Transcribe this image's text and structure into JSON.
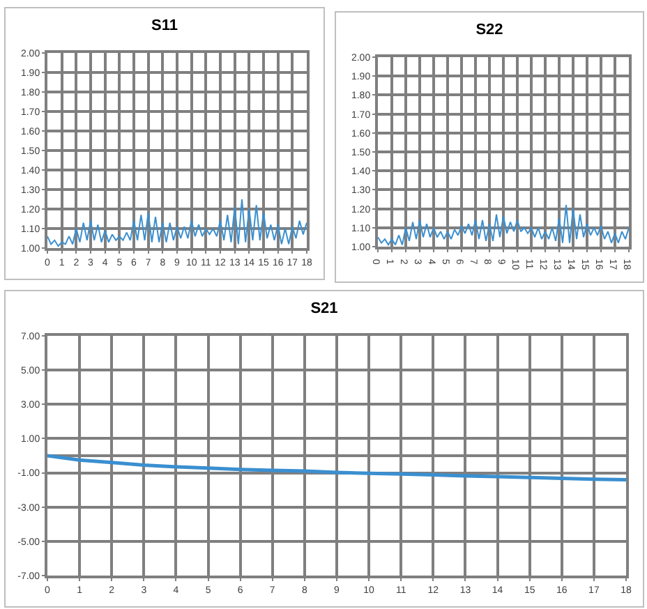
{
  "chart_data": [
    {
      "type": "line",
      "title": "S11",
      "xlim": [
        0,
        18
      ],
      "xticks": [
        0,
        1,
        2,
        3,
        4,
        5,
        6,
        7,
        8,
        9,
        10,
        11,
        12,
        13,
        14,
        15,
        16,
        17,
        18
      ],
      "ylim": [
        1,
        2
      ],
      "yticks": [
        {
          "value": 1,
          "label": "1.00"
        },
        {
          "value": 1.1,
          "label": "1.10"
        },
        {
          "value": 1.2,
          "label": "1.20"
        },
        {
          "value": 1.3,
          "label": "1.30"
        },
        {
          "value": 1.4,
          "label": "1.40"
        },
        {
          "value": 1.5,
          "label": "1.50"
        },
        {
          "value": 1.6,
          "label": "1.60"
        },
        {
          "value": 1.7,
          "label": "1.70"
        },
        {
          "value": 1.8,
          "label": "1.80"
        },
        {
          "value": 1.9,
          "label": "1.90"
        },
        {
          "value": 2,
          "label": "2.00"
        }
      ],
      "grid": true,
      "legend": false,
      "marker": "none",
      "x": [
        0,
        0.25,
        0.5,
        0.75,
        1,
        1.25,
        1.5,
        1.75,
        2,
        2.25,
        2.5,
        2.75,
        3,
        3.25,
        3.5,
        3.75,
        4,
        4.25,
        4.5,
        4.75,
        5,
        5.25,
        5.5,
        5.75,
        6,
        6.25,
        6.5,
        6.75,
        7,
        7.25,
        7.5,
        7.75,
        8,
        8.25,
        8.5,
        8.75,
        9,
        9.25,
        9.5,
        9.75,
        10,
        10.25,
        10.5,
        10.75,
        11,
        11.25,
        11.5,
        11.75,
        12,
        12.25,
        12.5,
        12.75,
        13,
        13.25,
        13.5,
        13.75,
        14,
        14.25,
        14.5,
        14.75,
        15,
        15.25,
        15.5,
        15.75,
        16,
        16.25,
        16.5,
        16.75,
        17,
        17.25,
        17.5,
        17.75,
        18
      ],
      "series": [
        {
          "color": "#3a8fd0",
          "values": [
            1.06,
            1.02,
            1.04,
            1.01,
            1.03,
            1.02,
            1.06,
            1.02,
            1.1,
            1.03,
            1.13,
            1.04,
            1.14,
            1.04,
            1.12,
            1.03,
            1.09,
            1.03,
            1.07,
            1.04,
            1.06,
            1.04,
            1.08,
            1.04,
            1.14,
            1.04,
            1.17,
            1.04,
            1.18,
            1.03,
            1.16,
            1.03,
            1.13,
            1.03,
            1.13,
            1.04,
            1.11,
            1.05,
            1.11,
            1.05,
            1.14,
            1.06,
            1.12,
            1.06,
            1.1,
            1.07,
            1.1,
            1.06,
            1.14,
            1.04,
            1.17,
            1.03,
            1.21,
            1.02,
            1.25,
            1.03,
            1.2,
            1.04,
            1.22,
            1.04,
            1.18,
            1.05,
            1.12,
            1.04,
            1.12,
            1.02,
            1.1,
            1.02,
            1.11,
            1.05,
            1.14,
            1.07,
            1.13
          ]
        }
      ]
    },
    {
      "type": "line",
      "title": "S22",
      "xlim": [
        0,
        18
      ],
      "xticks": [
        0,
        1,
        2,
        3,
        4,
        5,
        6,
        7,
        8,
        9,
        10,
        11,
        12,
        13,
        14,
        15,
        16,
        17,
        18
      ],
      "ylim": [
        1,
        2
      ],
      "yticks": [
        {
          "value": 1,
          "label": "1.00"
        },
        {
          "value": 1.1,
          "label": "1.10"
        },
        {
          "value": 1.2,
          "label": "1.20"
        },
        {
          "value": 1.3,
          "label": "1.30"
        },
        {
          "value": 1.4,
          "label": "1.40"
        },
        {
          "value": 1.5,
          "label": "1.50"
        },
        {
          "value": 1.6,
          "label": "1.60"
        },
        {
          "value": 1.7,
          "label": "1.70"
        },
        {
          "value": 1.8,
          "label": "1.80"
        },
        {
          "value": 1.9,
          "label": "1.90"
        },
        {
          "value": 2,
          "label": "2.00"
        }
      ],
      "grid": true,
      "legend": false,
      "marker": "none",
      "x": [
        0,
        0.25,
        0.5,
        0.75,
        1,
        1.25,
        1.5,
        1.75,
        2,
        2.25,
        2.5,
        2.75,
        3,
        3.25,
        3.5,
        3.75,
        4,
        4.25,
        4.5,
        4.75,
        5,
        5.25,
        5.5,
        5.75,
        6,
        6.25,
        6.5,
        6.75,
        7,
        7.25,
        7.5,
        7.75,
        8,
        8.25,
        8.5,
        8.75,
        9,
        9.25,
        9.5,
        9.75,
        10,
        10.25,
        10.5,
        10.75,
        11,
        11.25,
        11.5,
        11.75,
        12,
        12.25,
        12.5,
        12.75,
        13,
        13.25,
        13.5,
        13.75,
        14,
        14.25,
        14.5,
        14.75,
        15,
        15.25,
        15.5,
        15.75,
        16,
        16.25,
        16.5,
        16.75,
        17,
        17.25,
        17.5,
        17.75,
        18
      ],
      "series": [
        {
          "color": "#3a8fd0",
          "values": [
            1.05,
            1.02,
            1.04,
            1.01,
            1.04,
            1.01,
            1.06,
            1.01,
            1.1,
            1.03,
            1.13,
            1.04,
            1.14,
            1.05,
            1.12,
            1.05,
            1.1,
            1.05,
            1.08,
            1.04,
            1.08,
            1.04,
            1.09,
            1.06,
            1.11,
            1.07,
            1.12,
            1.06,
            1.14,
            1.04,
            1.14,
            1.03,
            1.12,
            1.03,
            1.17,
            1.05,
            1.16,
            1.07,
            1.13,
            1.08,
            1.14,
            1.08,
            1.1,
            1.07,
            1.1,
            1.05,
            1.1,
            1.04,
            1.08,
            1.04,
            1.1,
            1.03,
            1.15,
            1.02,
            1.22,
            1.02,
            1.2,
            1.04,
            1.17,
            1.05,
            1.12,
            1.06,
            1.1,
            1.06,
            1.11,
            1.04,
            1.08,
            1.02,
            1.07,
            1.02,
            1.08,
            1.04,
            1.1
          ]
        }
      ]
    },
    {
      "type": "line",
      "title": "S21",
      "xlim": [
        0,
        18
      ],
      "xticks": [
        0,
        1,
        2,
        3,
        4,
        5,
        6,
        7,
        8,
        9,
        10,
        11,
        12,
        13,
        14,
        15,
        16,
        17,
        18
      ],
      "ylim": [
        -7,
        7
      ],
      "yticks": [
        {
          "value": -7,
          "label": "-7.00"
        },
        {
          "value": -5,
          "label": "-5.00"
        },
        {
          "value": -3,
          "label": "-3.00"
        },
        {
          "value": -1,
          "label": "-1.00"
        },
        {
          "value": 1,
          "label": "1.00"
        },
        {
          "value": 3,
          "label": "3.00"
        },
        {
          "value": 5,
          "label": "5.00"
        },
        {
          "value": 7,
          "label": "7.00"
        }
      ],
      "grid": true,
      "legend": false,
      "marker": "none",
      "x": [
        0,
        1,
        2,
        3,
        4,
        5,
        6,
        7,
        8,
        9,
        10,
        11,
        12,
        13,
        14,
        15,
        16,
        17,
        18
      ],
      "series": [
        {
          "color": "#3a8fd0",
          "values": [
            0,
            -0.25,
            -0.4,
            -0.55,
            -0.65,
            -0.72,
            -0.8,
            -0.85,
            -0.9,
            -0.98,
            -1.03,
            -1.07,
            -1.12,
            -1.18,
            -1.22,
            -1.27,
            -1.32,
            -1.37,
            -1.4
          ]
        }
      ]
    }
  ]
}
